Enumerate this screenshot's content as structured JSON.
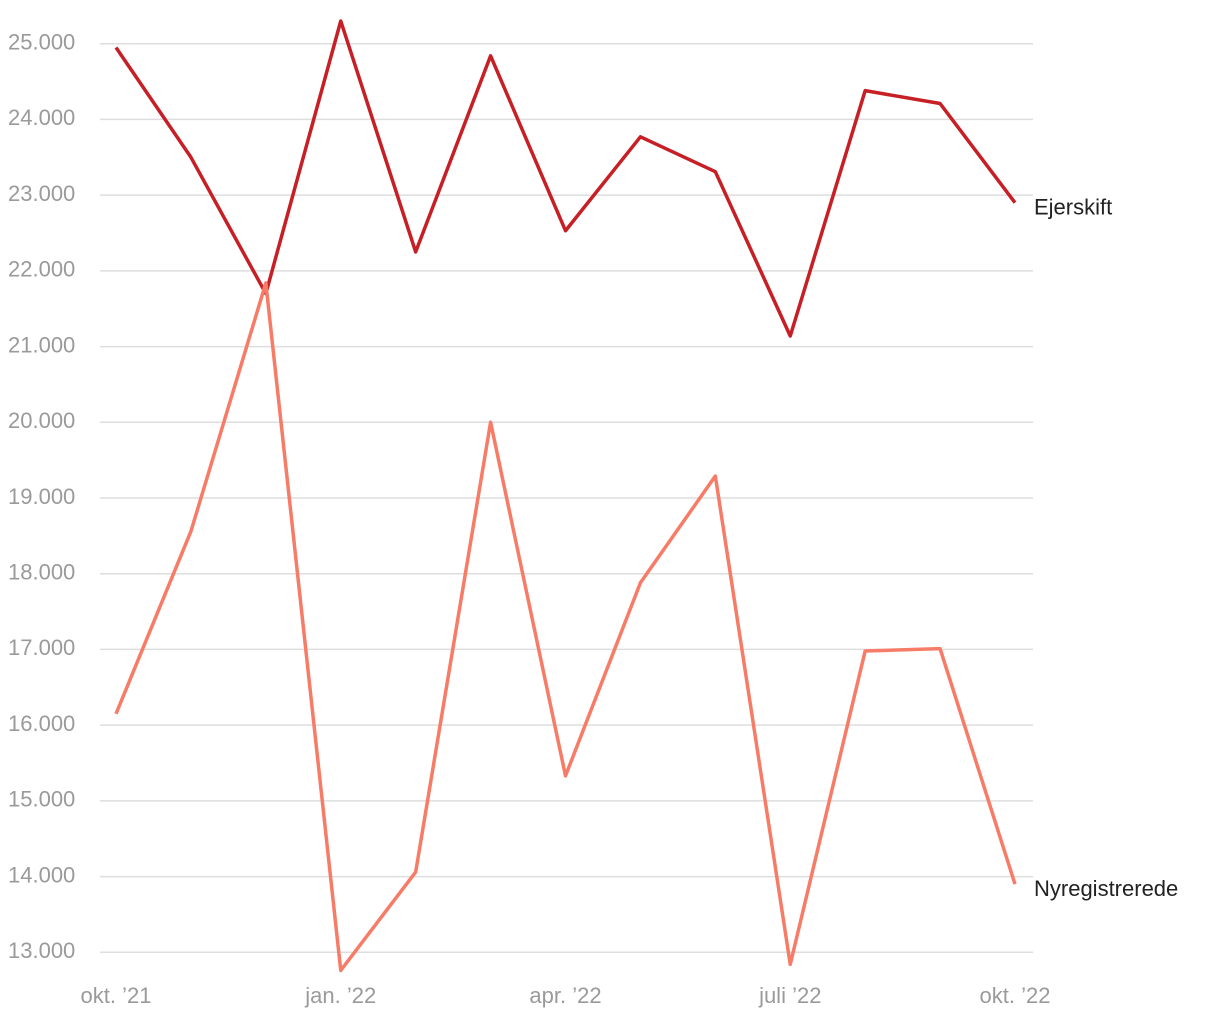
{
  "chart_data": {
    "type": "line",
    "categories": [
      "okt. ’21",
      null,
      null,
      "jan. ’22",
      null,
      null,
      "apr. ’22",
      null,
      null,
      "juli ’22",
      null,
      null,
      "okt. ’22"
    ],
    "series": [
      {
        "name": "Ejerskift",
        "color": "#c62026",
        "values": [
          24950,
          23500,
          21700,
          25300,
          22250,
          24840,
          22530,
          23770,
          23310,
          21140,
          24380,
          24210,
          22900
        ]
      },
      {
        "name": "Nyregistrerede",
        "color": "#f67c68",
        "values": [
          16150,
          18560,
          21840,
          12760,
          14060,
          20000,
          15330,
          17880,
          19290,
          12840,
          16980,
          17010,
          13900
        ]
      }
    ],
    "ylim": [
      12700,
      25300
    ],
    "yticks": [
      {
        "value": 13000,
        "label": "13.000"
      },
      {
        "value": 14000,
        "label": "14.000"
      },
      {
        "value": 15000,
        "label": "15.000"
      },
      {
        "value": 16000,
        "label": "16.000"
      },
      {
        "value": 17000,
        "label": "17.000"
      },
      {
        "value": 18000,
        "label": "18.000"
      },
      {
        "value": 19000,
        "label": "19.000"
      },
      {
        "value": 20000,
        "label": "20.000"
      },
      {
        "value": 21000,
        "label": "21.000"
      },
      {
        "value": 22000,
        "label": "22.000"
      },
      {
        "value": 23000,
        "label": "23.000"
      },
      {
        "value": 24000,
        "label": "24.000"
      },
      {
        "value": 25000,
        "label": "25.000"
      }
    ],
    "grid": true
  }
}
